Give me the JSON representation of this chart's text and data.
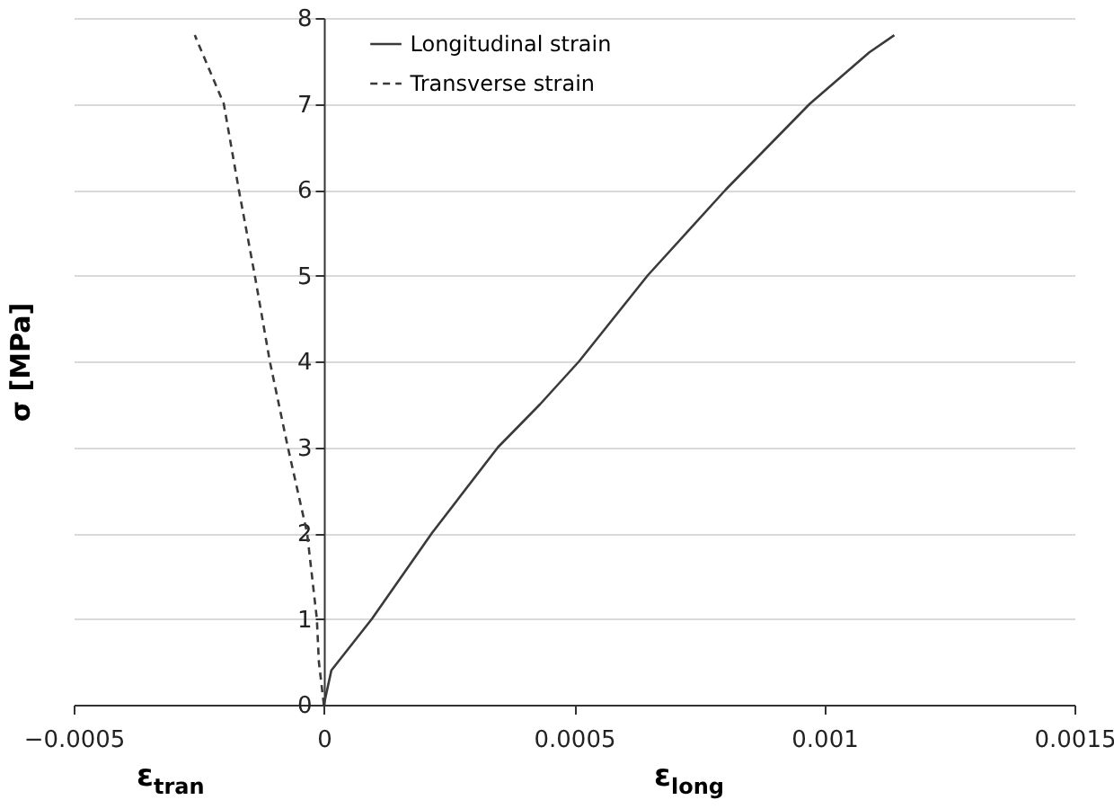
{
  "chart_data": {
    "type": "line",
    "xlabel": "ε$_{long}$",
    "ylabel": "σ [MPa]",
    "annotations": [
      "ε$_{tran}$"
    ],
    "xlim": [
      -0.0005,
      0.0015
    ],
    "xticks": [
      -0.0005,
      0,
      0.0005,
      0.001,
      0.0015
    ],
    "ylim": [
      0,
      8
    ],
    "yticks": [
      0,
      1,
      2,
      3,
      4,
      5,
      6,
      7,
      8
    ],
    "grid": "y",
    "legend": "top left",
    "marker": "none",
    "series": [
      {
        "name": "Longitudinal strain",
        "color": "#3a3a3a",
        "line_style": "solid",
        "x": [
          0,
          1.5e-05,
          9.6e-05,
          0.000216,
          0.000348,
          0.000432,
          0.00051,
          0.000647,
          0.000803,
          0.000971,
          0.00109,
          0.00114
        ],
        "values": [
          0,
          0.4,
          1,
          2,
          3,
          3.5,
          4,
          5,
          6,
          7,
          7.6,
          7.8
        ]
      },
      {
        "name": "Transverse strain",
        "color": "#3a3a3a",
        "line_style": "dashed",
        "x": [
          0,
          -1e-05,
          -1.4e-05,
          -3.35e-05,
          -7.2e-05,
          -0.000108,
          -0.000138,
          -0.00017,
          -0.0002,
          -0.000258
        ],
        "values": [
          0,
          0.5,
          1,
          2,
          3,
          4,
          5,
          6,
          7,
          7.8
        ]
      }
    ]
  }
}
